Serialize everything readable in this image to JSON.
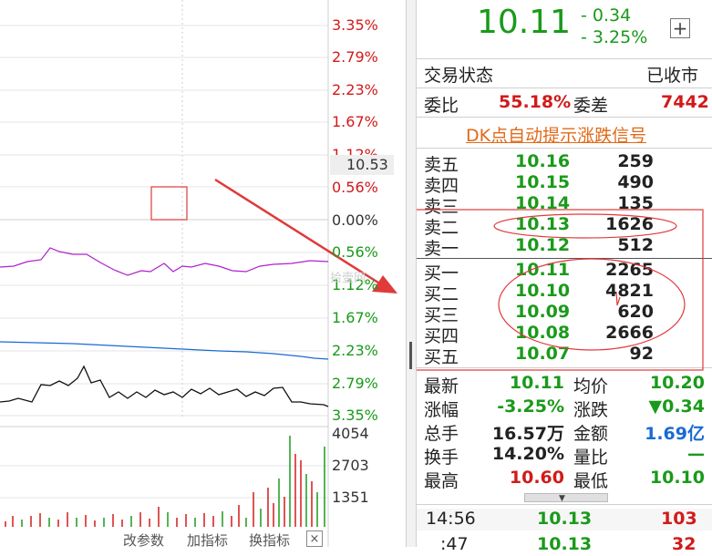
{
  "chart": {
    "pct_labels": [
      {
        "text": "3.35%",
        "color": "red"
      },
      {
        "text": "2.79%",
        "color": "red"
      },
      {
        "text": "2.23%",
        "color": "red"
      },
      {
        "text": "1.67%",
        "color": "red"
      },
      {
        "text": "1.12%",
        "color": "red"
      },
      {
        "text": "0.56%",
        "color": "red"
      },
      {
        "text": "0.00%",
        "color": "dark"
      },
      {
        "text": "0.56%",
        "color": "green"
      },
      {
        "text": "1.12%",
        "color": "green"
      },
      {
        "text": "1.67%",
        "color": "green"
      },
      {
        "text": "2.23%",
        "color": "green"
      },
      {
        "text": "2.79%",
        "color": "green"
      },
      {
        "text": "3.35%",
        "color": "green"
      }
    ],
    "current_price_tag": "10.53",
    "watermark": "拾壹网",
    "volume_labels": [
      "4054",
      "2703",
      "1351"
    ],
    "bottom_tools": [
      "改参数",
      "加指标",
      "换指标"
    ],
    "close_label": "×"
  },
  "quote": {
    "price": "10.11",
    "change": "- 0.34",
    "change_pct": "- 3.25%",
    "add_label": "+",
    "trading_status_label": "交易状态",
    "trading_status_value": "已收市",
    "ratio_label": "委比",
    "ratio_value": "55.18%",
    "diff_label": "委差",
    "diff_value": "7442",
    "signal_link": "DK点自动提示涨跌信号"
  },
  "order_book": {
    "asks": [
      {
        "label": "卖五",
        "price": "10.16",
        "volume": "259"
      },
      {
        "label": "卖四",
        "price": "10.15",
        "volume": "490"
      },
      {
        "label": "卖三",
        "price": "10.14",
        "volume": "135"
      },
      {
        "label": "卖二",
        "price": "10.13",
        "volume": "1626"
      },
      {
        "label": "卖一",
        "price": "10.12",
        "volume": "512"
      }
    ],
    "bids": [
      {
        "label": "买一",
        "price": "10.11",
        "volume": "2265"
      },
      {
        "label": "买二",
        "price": "10.10",
        "volume": "4821"
      },
      {
        "label": "买三",
        "price": "10.09",
        "volume": "620"
      },
      {
        "label": "买四",
        "price": "10.08",
        "volume": "2666"
      },
      {
        "label": "买五",
        "price": "10.07",
        "volume": "92"
      }
    ]
  },
  "stats": [
    {
      "l1": "最新",
      "v1": "10.11",
      "c1": "green",
      "l2": "均价",
      "v2": "10.20",
      "c2": "green"
    },
    {
      "l1": "涨幅",
      "v1": "-3.25%",
      "c1": "green",
      "l2": "涨跌",
      "v2": "▼0.34",
      "c2": "green"
    },
    {
      "l1": "总手",
      "v1": "16.57万",
      "c1": "dark",
      "l2": "金额",
      "v2": "1.69亿",
      "c2": "blue"
    },
    {
      "l1": "换手",
      "v1": "14.20%",
      "c1": "dark",
      "l2": "量比",
      "v2": "—",
      "c2": "green"
    },
    {
      "l1": "最高",
      "v1": "10.60",
      "c1": "red",
      "l2": "最低",
      "v2": "10.10",
      "c2": "green"
    }
  ],
  "ticks": [
    {
      "time": "14:56",
      "price": "10.13",
      "volume": "103"
    },
    {
      "time": ":47",
      "price": "10.13",
      "volume": "32"
    }
  ],
  "colors": {
    "up": "#d21a1a",
    "down": "#1a9a1a",
    "blue": "#1a6ad2",
    "annotation": "#e03a3a",
    "link": "#e06a1a"
  }
}
